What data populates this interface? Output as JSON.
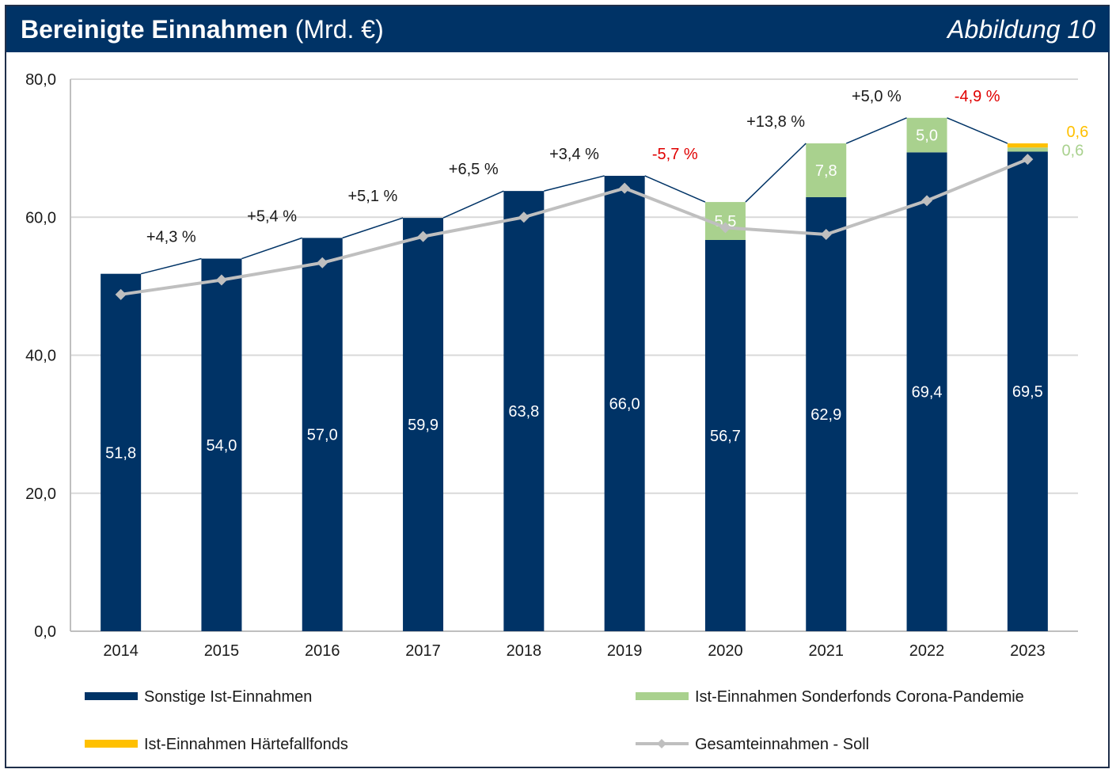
{
  "header": {
    "title": "Bereinigte Einnahmen",
    "unit": "(Mrd. €)",
    "figure_label": "Abbildung 10"
  },
  "colors": {
    "header_bg": "#003366",
    "sonstige": "#003366",
    "corona": "#a9d18e",
    "haerte": "#ffc000",
    "soll": "#bfbfbf",
    "negative": "#e00000",
    "grid": "#d9d9d9"
  },
  "chart_data": {
    "type": "bar",
    "stacked": true,
    "categories": [
      "2014",
      "2015",
      "2016",
      "2017",
      "2018",
      "2019",
      "2020",
      "2021",
      "2022",
      "2023"
    ],
    "ylim": [
      0,
      80
    ],
    "y_ticks": [
      "0,0",
      "20,0",
      "40,0",
      "60,0",
      "80,0"
    ],
    "y_tick_values": [
      0,
      20,
      40,
      60,
      80
    ],
    "grid": true,
    "series": [
      {
        "name": "Sonstige Ist-Einnahmen",
        "key": "sonstige",
        "values": [
          51.8,
          54.0,
          57.0,
          59.9,
          63.8,
          66.0,
          56.7,
          62.9,
          69.4,
          69.5
        ],
        "labels": [
          "51,8",
          "54,0",
          "57,0",
          "59,9",
          "63,8",
          "66,0",
          "56,7",
          "62,9",
          "69,4",
          "69,5"
        ]
      },
      {
        "name": "Ist-Einnahmen Sonderfonds Corona-Pandemie",
        "key": "corona",
        "values": [
          0,
          0,
          0,
          0,
          0,
          0,
          5.5,
          7.8,
          5.0,
          0.6
        ],
        "labels": [
          "",
          "",
          "",
          "",
          "",
          "",
          "5,5",
          "7,8",
          "5,0",
          "0,6"
        ]
      },
      {
        "name": "Ist-Einnahmen Härtefallfonds",
        "key": "haerte",
        "values": [
          0,
          0,
          0,
          0,
          0,
          0,
          0,
          0,
          0,
          0.6
        ],
        "labels": [
          "",
          "",
          "",
          "",
          "",
          "",
          "",
          "",
          "",
          "0,6"
        ]
      }
    ],
    "line": {
      "name": "Gesamteinnahmen - Soll",
      "values": [
        48.8,
        50.9,
        53.4,
        57.2,
        60.0,
        64.2,
        58.5,
        57.5,
        62.4,
        68.4
      ]
    },
    "growth": {
      "labels": [
        "+4,3 %",
        "+5,4 %",
        "+5,1 %",
        "+6,5 %",
        "+3,4 %",
        "-5,7 %",
        "+13,8 %",
        "+5,0 %",
        "-4,9 %"
      ],
      "negative": [
        false,
        false,
        false,
        false,
        false,
        true,
        false,
        false,
        true
      ]
    },
    "legend": {
      "sonstige": "Sonstige Ist-Einnahmen",
      "corona": "Ist-Einnahmen Sonderfonds Corona-Pandemie",
      "haerte": "Ist-Einnahmen Härtefallfonds",
      "soll": "Gesamteinnahmen - Soll"
    }
  }
}
